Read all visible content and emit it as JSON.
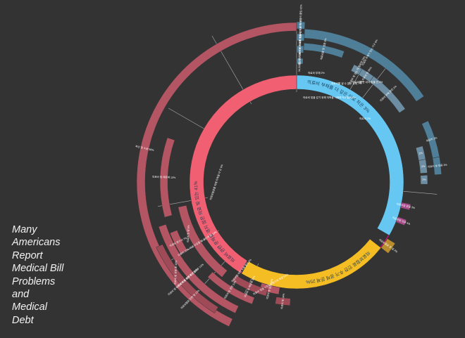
{
  "title_lines": [
    "Many",
    "Americans",
    "Report",
    "Medical Bill",
    "Problems",
    "and",
    "Medical",
    "Debt"
  ],
  "colors": {
    "background": "#333333",
    "debt_inner": "#f06072",
    "debt_outer": "#b35563",
    "debt_deep": "#9e4a57",
    "effort_inner": "#66c8f2",
    "effort_outer": "#4f7f98",
    "effort_dark": "#6d8ea2",
    "insurance_inner": "#f5bd24",
    "insurance_small": "#a64a88",
    "insurance_gold": "#b98d2d",
    "ring": "#c8107a",
    "connector": "#cfcfcf",
    "label": "#ffffff"
  },
  "chart_data": {
    "type": "sunburst",
    "title": "Many Americans Report Medical Bill Problems and Medical Debt",
    "nodes": [
      {
        "id": "effort",
        "ring": 1,
        "label": "의료비 부채를 더 갚은 이로 적은 3%",
        "segment_label": "의료비 부채를 더 갚은 이로 적은 3%",
        "color": "effort_inner"
      },
      {
        "id": "debt",
        "ring": 1,
        "label": "의료비 관련 문제를 겪지 않은 의료 빚 있는 41%",
        "segment_label": "의료비 관련 문제를 겪지 않은 의료 빚 있는 41%",
        "color": "debt_inner"
      },
      {
        "id": "insurance",
        "ring": 1,
        "label": "의료보험료 인한 추가 경제 문제 25%",
        "segment_label": "의료보험료 인한 추가 경제 문제 25%",
        "color": "insurance_inner"
      },
      {
        "id": "e1",
        "ring": 2,
        "parent": "effort",
        "label": "의료비 빚 갚는 데 필요한 23%",
        "color": "effort_dark"
      },
      {
        "id": "e2",
        "ring": 2,
        "parent": "effort",
        "label": "34 의료비 빚 26%",
        "color": "effort_dark"
      },
      {
        "id": "e3",
        "ring": 2,
        "parent": "effort",
        "label": "의료비 부채 관련 2%",
        "color": "effort_dark"
      },
      {
        "id": "e4",
        "ring": 2,
        "parent": "effort",
        "label": "2%",
        "color": "effort_dark"
      },
      {
        "id": "e5",
        "ring": 2,
        "parent": "effort",
        "label": "2%",
        "color": "effort_dark"
      },
      {
        "id": "e6",
        "ring": 2,
        "parent": "effort",
        "label": "2%",
        "color": "effort_dark"
      },
      {
        "id": "o1",
        "ring": 3,
        "parent": "effort",
        "label": "의료비 빚을 갚기 위해 생활비 줄임 62%",
        "color": "effort_outer"
      },
      {
        "id": "o2",
        "ring": 3,
        "parent": "effort",
        "label": "식사를 거르고 의료비 지불 71%",
        "color": "effort_outer"
      },
      {
        "id": "o3",
        "ring": 3,
        "parent": "effort",
        "label": "필요한 의료 서비스 미룸 23%",
        "color": "effort_outer"
      },
      {
        "id": "o4",
        "ring": 3,
        "parent": "effort",
        "label": "34,000원 이상 25%",
        "color": "effort_outer"
      },
      {
        "id": "o5",
        "ring": 3,
        "parent": "effort",
        "label": "의료비 부채가 있는 가구 8%",
        "color": "effort_outer"
      },
      {
        "id": "o6",
        "ring": 3,
        "parent": "effort",
        "label": "의료비를 못 냈음 3%",
        "color": "effort_outer"
      },
      {
        "id": "o7",
        "ring": 3,
        "parent": "effort",
        "label": "의료비 2%",
        "color": "effort_outer"
      },
      {
        "id": "o8",
        "ring": 3,
        "parent": "effort",
        "label": "의료비 빚 있음 2%",
        "color": "effort_outer"
      },
      {
        "id": "d1",
        "ring": 2,
        "parent": "debt",
        "label": "의료비 10% 이상 수입을 빚 갚는데 씀 19%",
        "color": "debt_outer"
      },
      {
        "id": "d2",
        "ring": 2,
        "parent": "debt",
        "label": "의료비 청구서 7%",
        "color": "debt_outer"
      },
      {
        "id": "d3",
        "ring": 2,
        "parent": "debt",
        "label": "의료비 빚 때문에 13%",
        "color": "debt_outer"
      },
      {
        "id": "d4",
        "ring": 2,
        "parent": "debt",
        "label": "의료비 빚 때문에 신용점수 22%",
        "color": "debt_outer"
      },
      {
        "id": "d5",
        "ring": 2,
        "parent": "debt",
        "label": "의료비 빚 관련 13%",
        "color": "debt_outer"
      },
      {
        "id": "d6",
        "ring": 2,
        "parent": "debt",
        "label": "의료비 빚 없음 10%",
        "color": "debt_outer"
      },
      {
        "id": "x1",
        "ring": 3,
        "parent": "debt",
        "label": "파산 및 소송 58%",
        "color": "debt_outer"
      },
      {
        "id": "x2",
        "ring": 3,
        "parent": "debt",
        "label": "의료비 빚 때문에 재정 문제 겪은 22%",
        "color": "debt_deep"
      },
      {
        "id": "x3",
        "ring": 3,
        "parent": "debt",
        "label": "의료비 빚 때문에 32%",
        "color": "debt_deep"
      },
      {
        "id": "x4",
        "ring": 3,
        "parent": "debt",
        "label": "의료비 빚 14%",
        "color": "debt_deep"
      },
      {
        "id": "i1",
        "ring": 2,
        "parent": "insurance",
        "label": "의료보험 없음 3%",
        "color": "insurance_small"
      },
      {
        "id": "i2",
        "ring": 2,
        "parent": "insurance",
        "label": "의료보험 있음 4%",
        "color": "insurance_small"
      },
      {
        "id": "i3",
        "ring": 2,
        "parent": "insurance",
        "label": "의료보험료 못 냄 2%",
        "color": "insurance_gold"
      }
    ],
    "annotations": [
      "의료비 빚을 갚기 위해 저축을 사용하거나 빌림 2%",
      "의료비를 못 내서 빚을 진 3%",
      "의료비를 낼 수 없는 상태 7%",
      "의료비 부채 2%",
      "의료비 2%",
      "의료비 및 빚 5%",
      "의료보험료를 위해 저축을 다 쓴 6%",
      "의료보험 처리 도움 필요 2%",
      "의료비 빚 상환 중 32%",
      "의료보험료 인한 빚 12%",
      "의료비 빚을 7가지 방법으로 해결 63%"
    ]
  }
}
